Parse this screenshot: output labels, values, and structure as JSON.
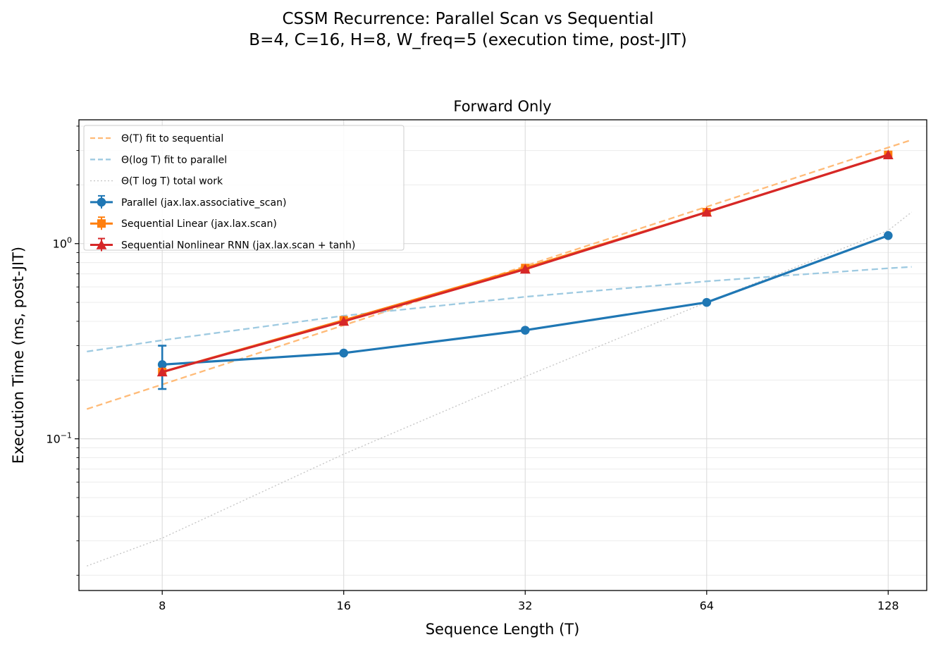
{
  "chart_data": {
    "type": "line",
    "suptitle_line1": "CSSM Recurrence: Parallel Scan vs Sequential",
    "suptitle_line2": "B=4, C=16, H=8, W_freq=5  (execution time, post-JIT)",
    "title": "Forward Only",
    "xlabel": "Sequence Length (T)",
    "ylabel": "Execution Time (ms, post-JIT)",
    "xscale": "log2",
    "yscale": "log10",
    "xlim": [
      5.82,
      148.3
    ],
    "ylim": [
      0.0167,
      4.31
    ],
    "x_ticks": [
      8,
      16,
      32,
      64,
      128
    ],
    "x_tick_labels": [
      "8",
      "16",
      "32",
      "64",
      "128"
    ],
    "y_ticks": [
      {
        "value": 1.0,
        "base": "10",
        "exp": "0"
      },
      {
        "value": 0.1,
        "base": "10",
        "exp": "−1"
      }
    ],
    "grid": true,
    "legend_position": "upper-left",
    "legend": [
      "Θ(T) fit to sequential",
      "Θ(log T) fit to parallel",
      "Θ(T log T) total work",
      "Parallel (jax.lax.associative_scan)",
      "Sequential Linear (jax.lax.scan)",
      "Sequential Nonlinear RNN (jax.lax.scan + tanh)"
    ],
    "series": [
      {
        "name": "Parallel (jax.lax.associative_scan)",
        "color": "#1f77b4",
        "marker": "circle",
        "x": [
          8,
          16,
          32,
          64,
          128
        ],
        "values": [
          0.24,
          0.275,
          0.36,
          0.5,
          1.1
        ],
        "err_low": [
          0.18,
          null,
          null,
          null,
          null
        ],
        "err_high": [
          0.3,
          null,
          null,
          null,
          null
        ]
      },
      {
        "name": "Sequential Linear (jax.lax.scan)",
        "color": "#ff7f0e",
        "marker": "square",
        "x": [
          8,
          16,
          32,
          64,
          128
        ],
        "values": [
          0.22,
          0.405,
          0.75,
          1.45,
          2.85
        ]
      },
      {
        "name": "Sequential Nonlinear RNN (jax.lax.scan + tanh)",
        "color": "#d62728",
        "marker": "triangle",
        "x": [
          8,
          16,
          32,
          64,
          128
        ],
        "values": [
          0.22,
          0.4,
          0.74,
          1.45,
          2.85
        ]
      }
    ],
    "fits": [
      {
        "name": "Θ(T) fit to sequential",
        "color": "#ffbb78",
        "style": "dashed",
        "x": [
          6.0,
          140.0
        ],
        "values": [
          0.142,
          3.4
        ]
      },
      {
        "name": "Θ(log T) fit to parallel",
        "color": "#9ecae1",
        "style": "dashed",
        "x": [
          6.0,
          8,
          16,
          32,
          64,
          128,
          140.0
        ],
        "values": [
          0.28,
          0.32,
          0.427,
          0.534,
          0.641,
          0.748,
          0.76
        ]
      },
      {
        "name": "Θ(T log T) total work",
        "color": "#c7c7c7",
        "style": "dotted",
        "x": [
          6.0,
          8,
          16,
          32,
          64,
          128,
          140.0
        ],
        "values": [
          0.0223,
          0.031,
          0.0834,
          0.2085,
          0.5004,
          1.1676,
          1.45
        ]
      }
    ]
  }
}
